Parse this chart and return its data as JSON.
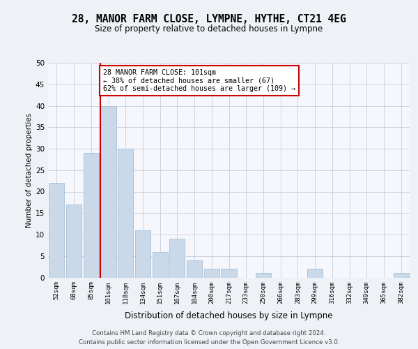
{
  "title": "28, MANOR FARM CLOSE, LYMPNE, HYTHE, CT21 4EG",
  "subtitle": "Size of property relative to detached houses in Lympne",
  "xlabel": "Distribution of detached houses by size in Lympne",
  "ylabel": "Number of detached properties",
  "categories": [
    "52sqm",
    "68sqm",
    "85sqm",
    "101sqm",
    "118sqm",
    "134sqm",
    "151sqm",
    "167sqm",
    "184sqm",
    "200sqm",
    "217sqm",
    "233sqm",
    "250sqm",
    "266sqm",
    "283sqm",
    "299sqm",
    "316sqm",
    "332sqm",
    "349sqm",
    "365sqm",
    "382sqm"
  ],
  "values": [
    22,
    17,
    29,
    40,
    30,
    11,
    6,
    9,
    4,
    2,
    2,
    0,
    1,
    0,
    0,
    2,
    0,
    0,
    0,
    0,
    1
  ],
  "bar_color": "#c9d9ea",
  "bar_edge_color": "#a8c0d6",
  "highlight_index": 3,
  "highlight_line_color": "#cc0000",
  "annotation_text": "28 MANOR FARM CLOSE: 101sqm\n← 38% of detached houses are smaller (67)\n62% of semi-detached houses are larger (109) →",
  "annotation_box_color": "#cc0000",
  "ylim": [
    0,
    50
  ],
  "yticks": [
    0,
    5,
    10,
    15,
    20,
    25,
    30,
    35,
    40,
    45,
    50
  ],
  "footer_text": "Contains HM Land Registry data © Crown copyright and database right 2024.\nContains public sector information licensed under the Open Government Licence v3.0.",
  "bg_color": "#eef2f7",
  "plot_bg_color": "#f5f7fc",
  "grid_color": "#c5cede"
}
